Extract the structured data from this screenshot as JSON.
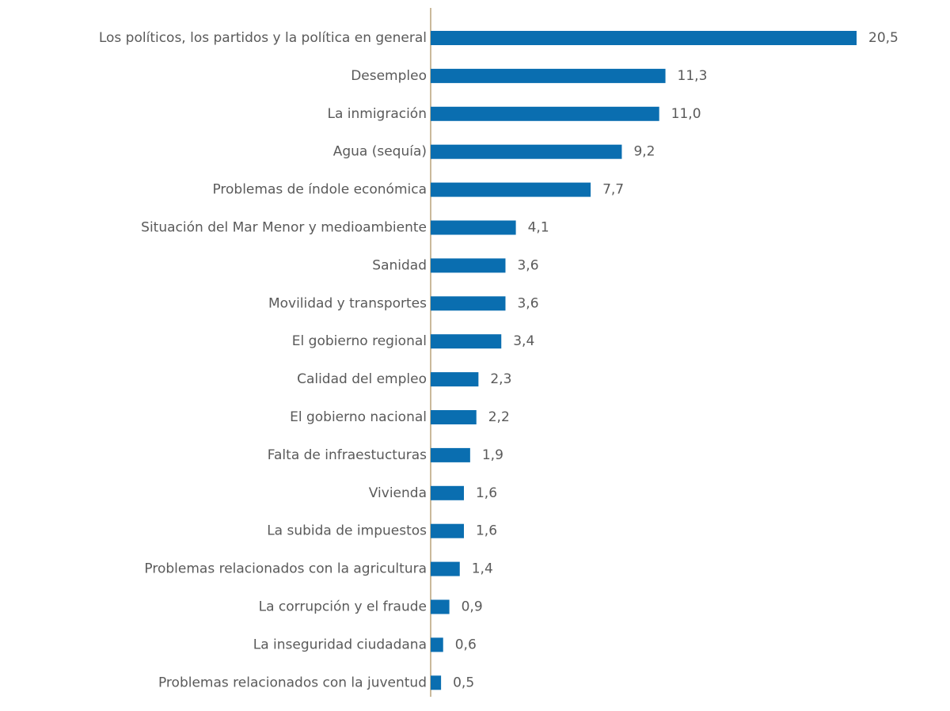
{
  "chart_data": {
    "type": "bar",
    "orientation": "horizontal",
    "color": "#0a6eb0",
    "categories": [
      "Los políticos, los partidos y la política en general",
      "Desempleo",
      "La inmigración",
      "Agua (sequía)",
      "Problemas de índole económica",
      "Situación del Mar Menor y medioambiente",
      "Sanidad",
      "Movilidad y transportes",
      "El gobierno regional",
      "Calidad del empleo",
      "El gobierno nacional",
      "Falta de infraestucturas",
      "Vivienda",
      "La subida de impuestos",
      "Problemas relacionados con la agricultura",
      "La corrupción y el fraude",
      "La inseguridad ciudadana",
      "Problemas relacionados con la juventud"
    ],
    "values": [
      20.5,
      11.3,
      11.0,
      9.2,
      7.7,
      4.1,
      3.6,
      3.6,
      3.4,
      2.3,
      2.2,
      1.9,
      1.6,
      1.6,
      1.4,
      0.9,
      0.6,
      0.5
    ],
    "value_labels": [
      "20,5",
      "11,3",
      "11,0",
      "9,2",
      "7,7",
      "4,1",
      "3,6",
      "3,6",
      "3,4",
      "2,3",
      "2,2",
      "1,9",
      "1,6",
      "1,6",
      "1,4",
      "0,9",
      "0,6",
      "0,5"
    ]
  }
}
